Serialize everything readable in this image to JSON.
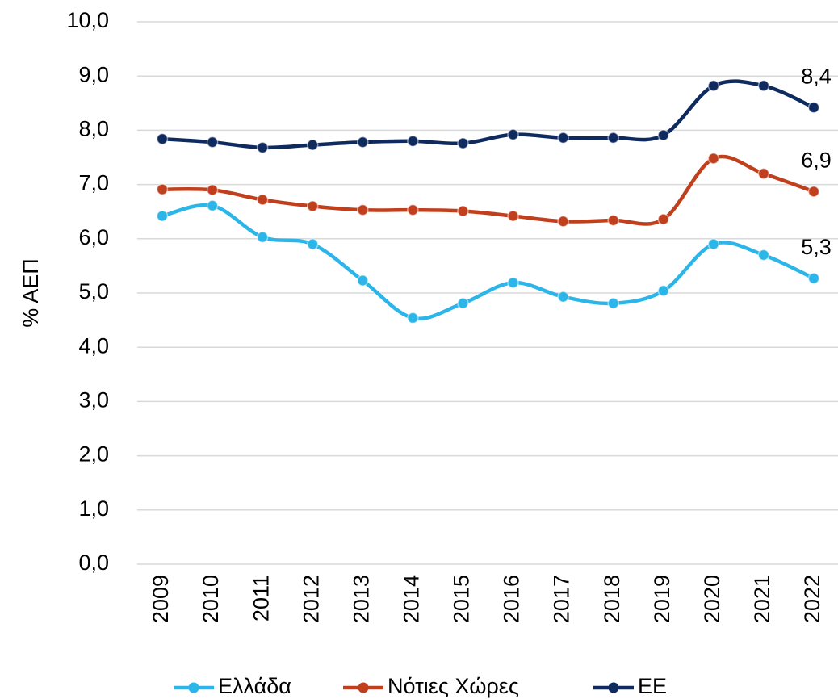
{
  "chart_data": {
    "type": "line",
    "y_label": "% ΑΕΠ",
    "categories": [
      "2009",
      "2010",
      "2011",
      "2012",
      "2013",
      "2014",
      "2015",
      "2016",
      "2017",
      "2018",
      "2019",
      "2020",
      "2021",
      "2022"
    ],
    "series": [
      {
        "name": "Ελλάδα",
        "color": "#2bb5e8",
        "values": [
          6.42,
          6.61,
          6.03,
          5.9,
          5.23,
          4.54,
          4.81,
          5.19,
          4.93,
          4.81,
          5.04,
          5.9,
          5.7,
          5.27
        ],
        "value_labels": [
          null,
          null,
          null,
          null,
          null,
          null,
          null,
          null,
          null,
          null,
          null,
          null,
          null,
          "5,3"
        ]
      },
      {
        "name": "Νότιες Χώρες",
        "color": "#c0401e",
        "values": [
          6.91,
          6.9,
          6.72,
          6.6,
          6.53,
          6.53,
          6.51,
          6.42,
          6.32,
          6.34,
          6.36,
          7.48,
          7.2,
          6.87
        ],
        "value_labels": [
          null,
          null,
          null,
          null,
          null,
          null,
          null,
          null,
          null,
          null,
          null,
          null,
          null,
          "6,9"
        ]
      },
      {
        "name": "ΕΕ",
        "color": "#0e2a5e",
        "values": [
          7.84,
          7.78,
          7.68,
          7.73,
          7.78,
          7.8,
          7.76,
          7.92,
          7.86,
          7.86,
          7.91,
          8.82,
          8.82,
          8.42
        ],
        "value_labels": [
          null,
          null,
          null,
          null,
          null,
          null,
          null,
          null,
          null,
          null,
          null,
          null,
          null,
          "8,4"
        ]
      }
    ],
    "ylim": [
      0,
      10
    ],
    "yticks": [
      {
        "value": 0,
        "label": "0,0"
      },
      {
        "value": 1,
        "label": "1,0"
      },
      {
        "value": 2,
        "label": "2,0"
      },
      {
        "value": 3,
        "label": "3,0"
      },
      {
        "value": 4,
        "label": "4,0"
      },
      {
        "value": 5,
        "label": "5,0"
      },
      {
        "value": 6,
        "label": "6,0"
      },
      {
        "value": 7,
        "label": "7,0"
      },
      {
        "value": 8,
        "label": "8,0"
      },
      {
        "value": 9,
        "label": "9,0"
      },
      {
        "value": 10,
        "label": "10,0"
      }
    ],
    "grid": true,
    "smooth": true,
    "legend": "bottom"
  }
}
